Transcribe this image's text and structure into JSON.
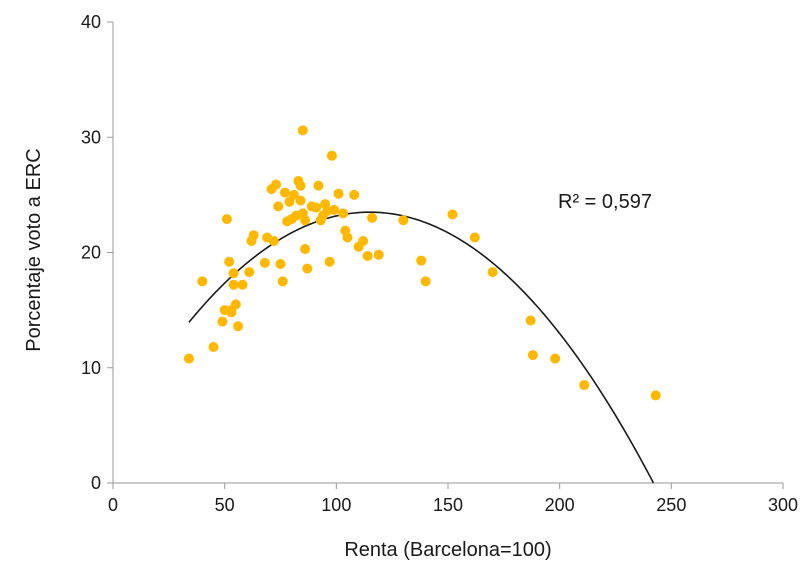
{
  "chart_data": {
    "type": "scatter",
    "title": "",
    "xlabel": "Renta (Barcelona=100)",
    "ylabel": "Porcentaje voto a ERC",
    "xlim": [
      0,
      300
    ],
    "ylim": [
      0,
      40
    ],
    "xticks": [
      "0",
      "50",
      "100",
      "150",
      "200",
      "250",
      "300"
    ],
    "yticks": [
      "0",
      "10",
      "20",
      "30",
      "40"
    ],
    "grid": false,
    "point_color": "#FFB800",
    "trend_color": "#1a1a1a",
    "annotation": "R² = 0,597",
    "trendline": {
      "type": "polynomial",
      "order": 2,
      "x_range": [
        34,
        242
      ],
      "vertex": [
        115,
        23.5
      ],
      "zero_at": 242
    },
    "points": [
      [
        34,
        10.8
      ],
      [
        40,
        17.5
      ],
      [
        45,
        11.8
      ],
      [
        49,
        14.0
      ],
      [
        50,
        15.0
      ],
      [
        51,
        22.9
      ],
      [
        52,
        19.2
      ],
      [
        53,
        14.8
      ],
      [
        53,
        15.0
      ],
      [
        54,
        17.2
      ],
      [
        54,
        18.2
      ],
      [
        55,
        15.5
      ],
      [
        56,
        13.6
      ],
      [
        58,
        17.2
      ],
      [
        61,
        18.3
      ],
      [
        62,
        21.0
      ],
      [
        63,
        21.5
      ],
      [
        68,
        19.1
      ],
      [
        69,
        21.3
      ],
      [
        71,
        25.5
      ],
      [
        72,
        21.0
      ],
      [
        73,
        25.9
      ],
      [
        74,
        24.0
      ],
      [
        75,
        19.0
      ],
      [
        76,
        17.5
      ],
      [
        77,
        25.2
      ],
      [
        78,
        22.7
      ],
      [
        79,
        24.4
      ],
      [
        80,
        22.9
      ],
      [
        81,
        25.0
      ],
      [
        82,
        23.2
      ],
      [
        83,
        26.2
      ],
      [
        84,
        25.8
      ],
      [
        84,
        24.5
      ],
      [
        85,
        30.6
      ],
      [
        85,
        23.4
      ],
      [
        86,
        22.8
      ],
      [
        86,
        20.3
      ],
      [
        87,
        18.6
      ],
      [
        89,
        24.0
      ],
      [
        91,
        23.9
      ],
      [
        92,
        25.8
      ],
      [
        93,
        22.8
      ],
      [
        94,
        23.2
      ],
      [
        95,
        24.2
      ],
      [
        96,
        23.6
      ],
      [
        97,
        19.2
      ],
      [
        98,
        28.4
      ],
      [
        99,
        23.7
      ],
      [
        101,
        25.1
      ],
      [
        103,
        23.4
      ],
      [
        104,
        21.9
      ],
      [
        105,
        21.3
      ],
      [
        108,
        25.0
      ],
      [
        110,
        20.5
      ],
      [
        112,
        21.0
      ],
      [
        114,
        19.7
      ],
      [
        116,
        23.0
      ],
      [
        119,
        19.8
      ],
      [
        130,
        22.8
      ],
      [
        138,
        19.3
      ],
      [
        140,
        17.5
      ],
      [
        152,
        23.3
      ],
      [
        162,
        21.3
      ],
      [
        170,
        18.3
      ],
      [
        187,
        14.1
      ],
      [
        188,
        11.1
      ],
      [
        198,
        10.8
      ],
      [
        211,
        8.5
      ],
      [
        243,
        7.6
      ]
    ]
  }
}
